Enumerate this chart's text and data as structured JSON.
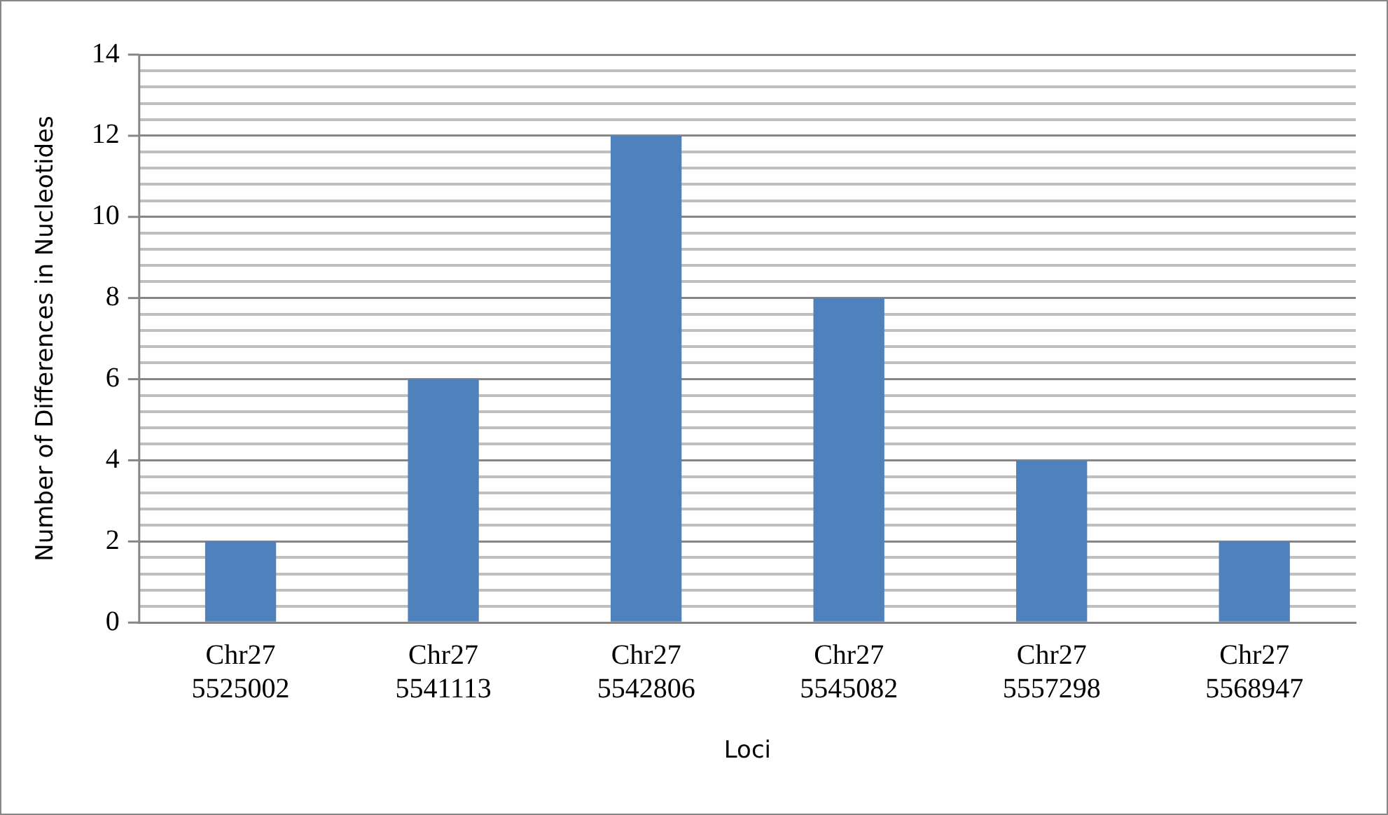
{
  "chart_data": {
    "type": "bar",
    "xlabel": "Loci",
    "ylabel": "Number of Differences in Nucleotides",
    "categories": [
      "Chr27\n5525002",
      "Chr27\n5541113",
      "Chr27\n5542806",
      "Chr27\n5545082",
      "Chr27\n5557298",
      "Chr27\n5568947"
    ],
    "values": [
      2,
      6,
      12,
      8,
      4,
      2
    ],
    "color": "#4f81bd",
    "ylim": [
      0,
      14
    ],
    "yticks": [
      0,
      {
        "value": 0.4,
        "label": null
      },
      {
        "value": 0.8,
        "label": null
      },
      {
        "value": 1.2,
        "label": null
      },
      {
        "value": 1.6,
        "label": null
      },
      2,
      {
        "value": 2.4,
        "label": null
      },
      {
        "value": 2.8,
        "label": null
      },
      {
        "value": 3.2,
        "label": null
      },
      {
        "value": 3.6,
        "label": null
      },
      4,
      {
        "value": 4.4,
        "label": null
      },
      {
        "value": 4.8,
        "label": null
      },
      {
        "value": 5.2,
        "label": null
      },
      {
        "value": 5.6,
        "label": null
      },
      6,
      {
        "value": 6.4,
        "label": null
      },
      {
        "value": 6.8,
        "label": null
      },
      {
        "value": 7.2,
        "label": null
      },
      {
        "value": 7.6,
        "label": null
      },
      8,
      {
        "value": 8.4,
        "label": null
      },
      {
        "value": 8.8,
        "label": null
      },
      {
        "value": 9.2,
        "label": null
      },
      {
        "value": 9.6,
        "label": null
      },
      10,
      {
        "value": 10.4,
        "label": null
      },
      {
        "value": 10.8,
        "label": null
      },
      {
        "value": 11.2,
        "label": null
      },
      {
        "value": 11.6,
        "label": null
      },
      12,
      {
        "value": 12.4,
        "label": null
      },
      {
        "value": 12.8,
        "label": null
      },
      {
        "value": 13.2,
        "label": null
      },
      {
        "value": 13.6,
        "label": null
      },
      14
    ],
    "grid": "y"
  }
}
